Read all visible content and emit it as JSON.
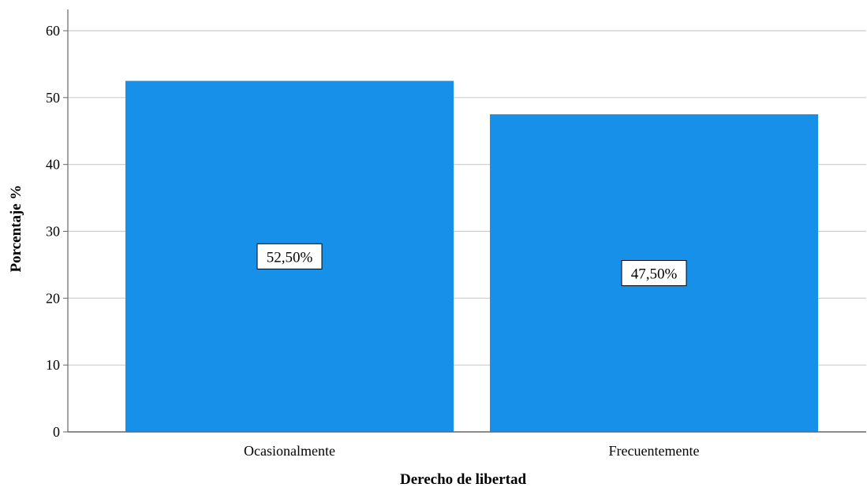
{
  "chart_data": {
    "type": "bar",
    "categories": [
      "Ocasionalmente",
      "Frecuentemente"
    ],
    "values": [
      52.5,
      47.5
    ],
    "data_labels": [
      "52,50%",
      "47,50%"
    ],
    "title": "",
    "xlabel": "Derecho de libertad",
    "ylabel": "Porcentaje %",
    "ylim": [
      0,
      60
    ],
    "yticks": [
      0,
      10,
      20,
      30,
      40,
      50,
      60
    ],
    "grid": "horizontal",
    "legend": "none",
    "colors": {
      "bar": "#1690e8",
      "grid": "#cccccc",
      "axis": "#666666",
      "label_box": "#ffffff"
    }
  }
}
